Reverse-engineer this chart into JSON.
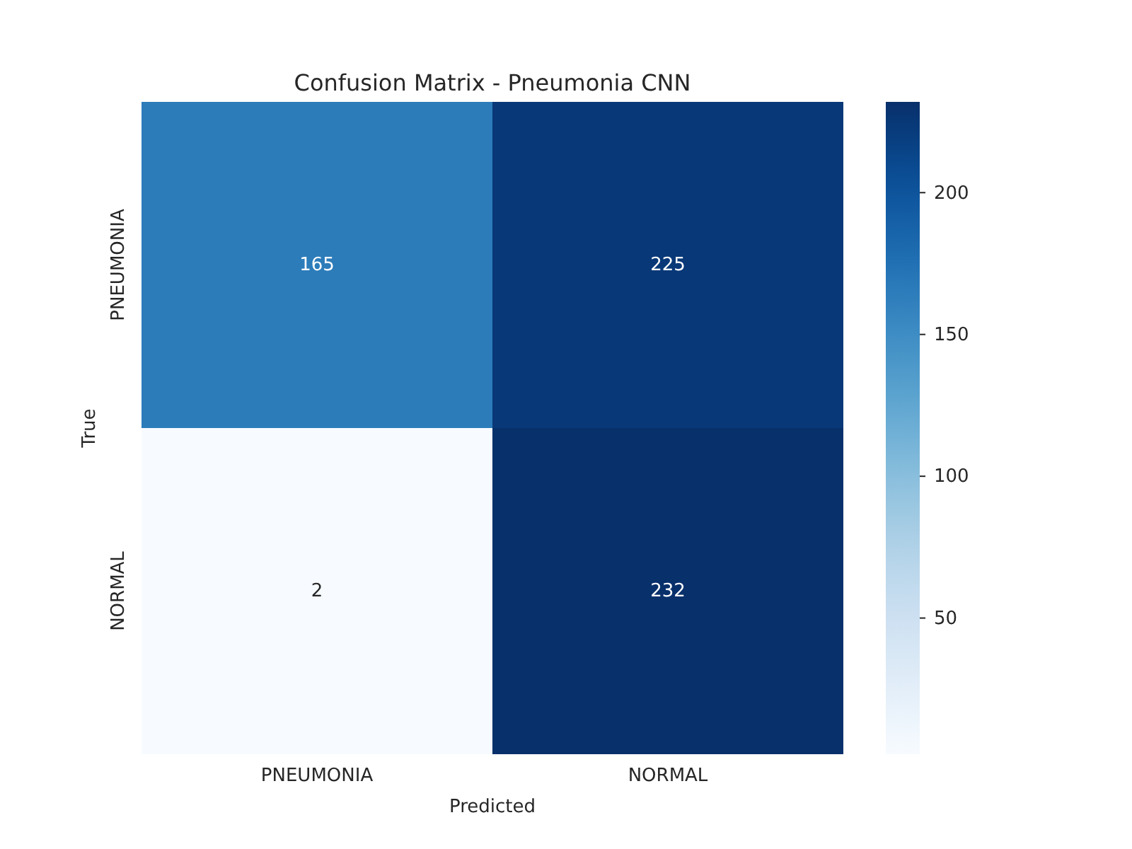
{
  "chart_data": {
    "type": "heatmap",
    "title": "Confusion Matrix - Pneumonia CNN",
    "xlabel": "Predicted",
    "ylabel": "True",
    "categories": [
      "PNEUMONIA",
      "NORMAL"
    ],
    "y_categories": [
      "PNEUMONIA",
      "NORMAL"
    ],
    "cells": [
      [
        165,
        225
      ],
      [
        2,
        232
      ]
    ],
    "clim": [
      2,
      232
    ],
    "cticks": [
      50,
      100,
      150,
      200
    ],
    "data_labels": true
  }
}
